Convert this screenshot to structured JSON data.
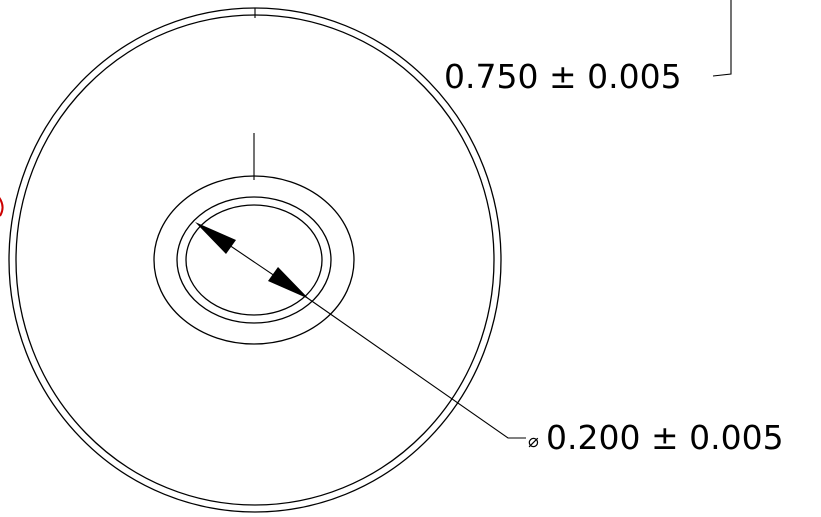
{
  "drawing": {
    "annotations": {
      "depth_dimension": "0.750 ± 0.005",
      "diameter_symbol": "⌀",
      "diameter_dimension": "0.200 ± 0.005"
    },
    "colors": {
      "line": "#000000",
      "background": "#ffffff",
      "edge_mark": "#cc0000"
    }
  }
}
